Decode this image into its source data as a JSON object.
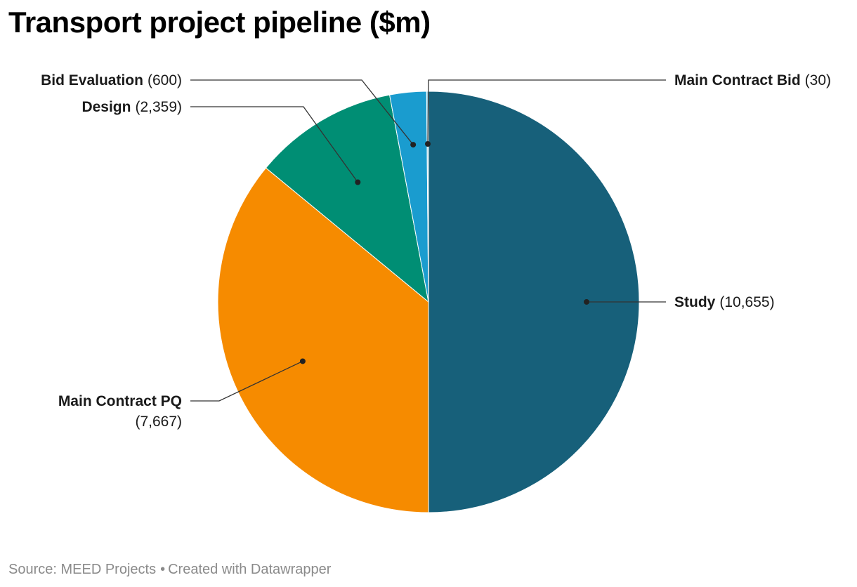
{
  "title": "Transport project pipeline ($m)",
  "footer": {
    "source": "Source: MEED Projects",
    "separator": "•",
    "credit": "Created with Datawrapper"
  },
  "chart_data": {
    "type": "pie",
    "title": "Transport project pipeline ($m)",
    "slices": [
      {
        "label": "Study",
        "value": 10655,
        "display": "(10,655)",
        "color": "#17607a"
      },
      {
        "label": "Main Contract PQ",
        "value": 7667,
        "display": "(7,667)",
        "color": "#f68b00"
      },
      {
        "label": "Design",
        "value": 2359,
        "display": "(2,359)",
        "color": "#008e74"
      },
      {
        "label": "Bid Evaluation",
        "value": 600,
        "display": "(600)",
        "color": "#1a9ccf"
      },
      {
        "label": "Main Contract Bid",
        "value": 30,
        "display": "(30)",
        "color": "#9ecfe0"
      }
    ],
    "start_angle": "12 o'clock",
    "direction": "clockwise",
    "legend": "none (direct labels)"
  }
}
